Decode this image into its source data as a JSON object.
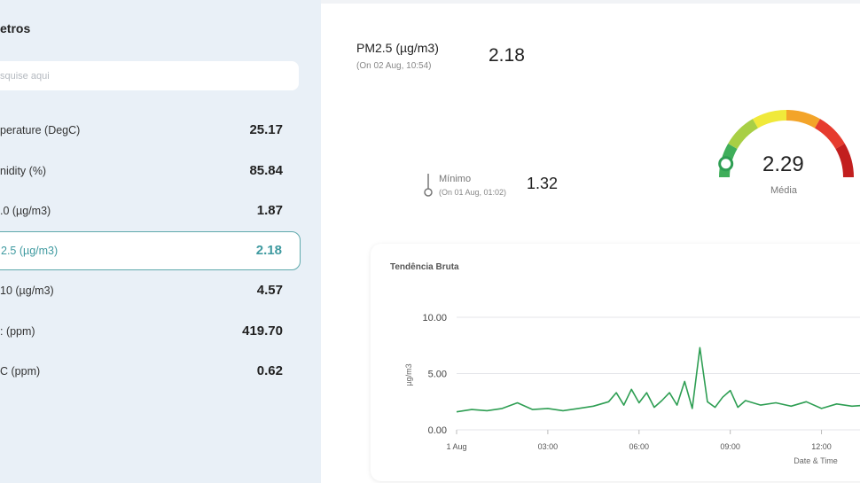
{
  "sidebar": {
    "title": "etros",
    "search_placeholder": "squise aqui",
    "params": [
      {
        "label": "perature (DegC)",
        "value": "25.17",
        "active": false
      },
      {
        "label": "nidity (%)",
        "value": "85.84",
        "active": false
      },
      {
        "label": ".0 (µg/m3)",
        "value": "1.87",
        "active": false
      },
      {
        "label": "2.5 (µg/m3)",
        "value": "2.18",
        "active": true
      },
      {
        "label": "10 (µg/m3)",
        "value": "4.57",
        "active": false
      },
      {
        "label": ": (ppm)",
        "value": "419.70",
        "active": false
      },
      {
        "label": "C (ppm)",
        "value": "0.62",
        "active": false
      }
    ]
  },
  "current": {
    "name": "PM2.5 (µg/m3)",
    "date": "(On 02 Aug, 10:54)",
    "value": "2.18"
  },
  "minimum": {
    "label": "Mínimo",
    "date": "(On 01 Aug, 01:02)",
    "value": "1.32"
  },
  "gauge": {
    "value": "2.29",
    "label": "Média",
    "level": 0.07,
    "colors": [
      "#3fae5a",
      "#a8cf45",
      "#f0e93a",
      "#f3a429",
      "#e63b2e",
      "#c21f1f"
    ]
  },
  "chart": {
    "title": "Tendência Bruta",
    "ylabel": "µg/m3",
    "xlabel": "Date & Time",
    "line_color": "#2e9e53",
    "chart_data": {
      "type": "line",
      "title": "Tendência Bruta",
      "ylabel": "µg/m3",
      "xlabel": "Date & Time",
      "ylim": [
        0,
        10
      ],
      "yticks": [
        "10.00",
        "5.00",
        "0.00"
      ],
      "xticks": [
        "1 Aug",
        "03:00",
        "06:00",
        "09:00",
        "12:00"
      ],
      "x_hours": [
        0,
        0.5,
        1,
        1.5,
        2,
        2.5,
        3,
        3.5,
        4,
        4.5,
        5,
        5.25,
        5.5,
        5.75,
        6,
        6.25,
        6.5,
        6.75,
        7,
        7.25,
        7.5,
        7.75,
        8,
        8.25,
        8.5,
        8.75,
        9,
        9.25,
        9.5,
        10,
        10.5,
        11,
        11.5,
        12,
        12.5,
        13,
        13.5
      ],
      "values": [
        1.6,
        1.8,
        1.7,
        1.9,
        2.4,
        1.8,
        1.9,
        1.7,
        1.9,
        2.1,
        2.5,
        3.3,
        2.2,
        3.6,
        2.4,
        3.3,
        2.0,
        2.6,
        3.3,
        2.2,
        4.3,
        1.9,
        7.3,
        2.5,
        2.0,
        2.9,
        3.5,
        2.0,
        2.6,
        2.2,
        2.4,
        2.1,
        2.5,
        1.9,
        2.3,
        2.1,
        2.2
      ]
    }
  }
}
